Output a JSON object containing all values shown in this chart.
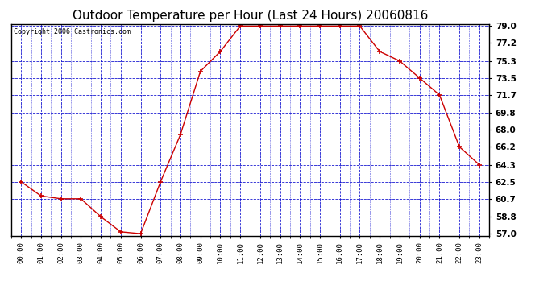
{
  "title": "Outdoor Temperature per Hour (Last 24 Hours) 20060816",
  "copyright_text": "Copyright 2006 Castronics.com",
  "hours": [
    "00:00",
    "01:00",
    "02:00",
    "03:00",
    "04:00",
    "05:00",
    "06:00",
    "07:00",
    "08:00",
    "09:00",
    "10:00",
    "11:00",
    "12:00",
    "13:00",
    "14:00",
    "15:00",
    "16:00",
    "17:00",
    "18:00",
    "19:00",
    "20:00",
    "21:00",
    "22:00",
    "23:00"
  ],
  "temperatures": [
    62.5,
    61.0,
    60.7,
    60.7,
    58.8,
    57.2,
    57.0,
    62.5,
    67.5,
    74.2,
    76.3,
    79.0,
    79.0,
    79.0,
    79.0,
    79.0,
    79.0,
    79.0,
    76.3,
    75.3,
    73.5,
    71.7,
    66.2,
    64.3
  ],
  "y_ticks": [
    57.0,
    58.8,
    60.7,
    62.5,
    64.3,
    66.2,
    68.0,
    69.8,
    71.7,
    73.5,
    75.3,
    77.2,
    79.0
  ],
  "ylim": [
    56.8,
    79.2
  ],
  "line_color": "#cc0000",
  "marker": "+",
  "marker_color": "#cc0000",
  "grid_color": "#0000cc",
  "background_color": "#ffffff",
  "plot_bg_color": "#ffffff",
  "title_fontsize": 11,
  "copyright_fontsize": 6
}
